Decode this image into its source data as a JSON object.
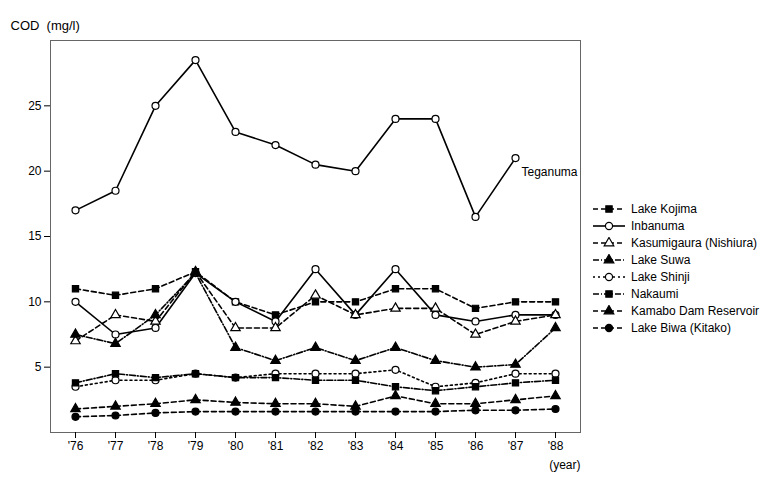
{
  "chart_data": {
    "type": "line",
    "categories": [
      "'76",
      "'77",
      "'78",
      "'79",
      "'80",
      "'81",
      "'82",
      "'83",
      "'84",
      "'85",
      "'86",
      "'87",
      "'88"
    ],
    "series": [
      {
        "name": "Teganuma",
        "color": "#000000",
        "marker": "circle-open",
        "line_style": "solid",
        "values": [
          17.0,
          18.5,
          25.0,
          28.5,
          23.0,
          22.0,
          20.5,
          20.0,
          24.0,
          24.0,
          16.5,
          21.0,
          null
        ]
      },
      {
        "name": "Lake Kojima",
        "color": "#000000",
        "marker": "square",
        "line_style": "dashed",
        "values": [
          11.0,
          10.5,
          11.0,
          12.3,
          10.0,
          9.0,
          10.0,
          10.0,
          11.0,
          11.0,
          9.5,
          10.0,
          10.0
        ]
      },
      {
        "name": "Inbanuma",
        "color": "#000000",
        "marker": "circle-open",
        "line_style": "solid",
        "values": [
          10.0,
          7.5,
          8.0,
          12.2,
          10.0,
          8.5,
          12.5,
          9.0,
          12.5,
          9.0,
          8.5,
          9.0,
          9.0
        ]
      },
      {
        "name": "Kasumigaura (Nishiura)",
        "color": "#000000",
        "marker": "triangle-open",
        "line_style": "dashed",
        "values": [
          7.0,
          9.0,
          8.5,
          12.3,
          8.0,
          8.0,
          10.5,
          9.0,
          9.5,
          9.5,
          7.5,
          8.5,
          9.0
        ]
      },
      {
        "name": "Lake Suwa",
        "color": "#000000",
        "marker": "triangle",
        "line_style": "dashdot",
        "values": [
          7.5,
          6.8,
          9.0,
          12.2,
          6.5,
          5.5,
          6.5,
          5.5,
          6.5,
          5.5,
          5.0,
          5.2,
          8.0
        ]
      },
      {
        "name": "Lake Shinji",
        "color": "#000000",
        "marker": "circle-open",
        "line_style": "dotted",
        "values": [
          3.5,
          4.0,
          4.0,
          4.5,
          4.2,
          4.5,
          4.5,
          4.5,
          4.8,
          3.5,
          3.8,
          4.5,
          4.5
        ]
      },
      {
        "name": "Nakaumi",
        "color": "#000000",
        "marker": "square",
        "line_style": "dashdot",
        "values": [
          3.8,
          4.5,
          4.2,
          4.5,
          4.2,
          4.2,
          4.0,
          4.0,
          3.5,
          3.2,
          3.5,
          3.8,
          4.0
        ]
      },
      {
        "name": "Kamabo Dam Reservoir",
        "color": "#000000",
        "marker": "triangle",
        "line_style": "dashed",
        "values": [
          1.8,
          2.0,
          2.2,
          2.5,
          2.3,
          2.2,
          2.2,
          2.0,
          2.8,
          2.2,
          2.2,
          2.5,
          2.8
        ]
      },
      {
        "name": "Lake Biwa (Kitako)",
        "color": "#000000",
        "marker": "circle",
        "line_style": "dashed",
        "values": [
          1.2,
          1.3,
          1.5,
          1.6,
          1.6,
          1.6,
          1.6,
          1.6,
          1.6,
          1.6,
          1.7,
          1.7,
          1.8
        ]
      }
    ],
    "annotations": [
      {
        "text": "Teganuma",
        "x": "'87",
        "y": 21.0
      }
    ],
    "y_label": "COD  (mg/l)",
    "x_label": "(year)",
    "ylim": [
      0,
      30
    ],
    "yticks": [
      5,
      10,
      15,
      20,
      25
    ],
    "grid": false,
    "legend": "right"
  }
}
